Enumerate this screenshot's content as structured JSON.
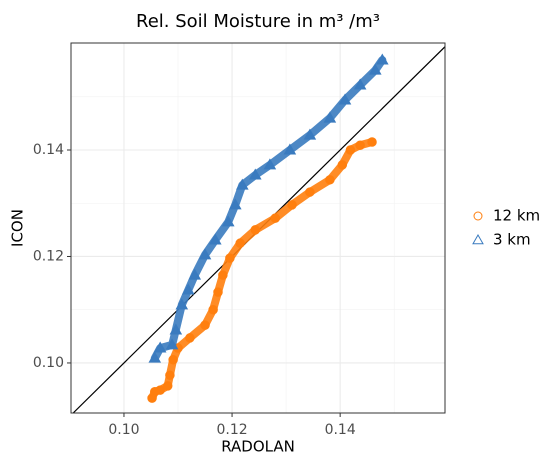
{
  "chart_data": {
    "type": "scatter",
    "title": "Rel. Soil Moisture in m³ /m³",
    "x_label": "RADOLAN",
    "y_label": "ICON",
    "xlim": [
      0.0902,
      0.1594
    ],
    "ylim": [
      0.0906,
      0.1601
    ],
    "xticks": [
      {
        "value": 0.1,
        "label": "0.10"
      },
      {
        "value": 0.12,
        "label": "0.12"
      },
      {
        "value": 0.14,
        "label": "0.14"
      }
    ],
    "yticks": [
      {
        "value": 0.1,
        "label": "0.10"
      },
      {
        "value": 0.12,
        "label": "0.12"
      },
      {
        "value": 0.14,
        "label": "0.14"
      }
    ],
    "grid": true,
    "legend": "right",
    "series": [
      {
        "name": "12 km",
        "color": "#ff7f0e",
        "marker": "circle",
        "x": [
          0.1052,
          0.1057,
          0.1067,
          0.1081,
          0.1085,
          0.1091,
          0.11,
          0.1122,
          0.115,
          0.1165,
          0.1174,
          0.1183,
          0.1196,
          0.1215,
          0.1243,
          0.128,
          0.1311,
          0.1344,
          0.1381,
          0.1404,
          0.1419,
          0.1437,
          0.1459
        ],
        "values": [
          0.0934,
          0.0946,
          0.0949,
          0.0957,
          0.0977,
          0.1006,
          0.1028,
          0.1047,
          0.1071,
          0.11,
          0.1133,
          0.1165,
          0.1197,
          0.1225,
          0.125,
          0.1272,
          0.1297,
          0.1321,
          0.1344,
          0.1372,
          0.14,
          0.1409,
          0.1415
        ]
      },
      {
        "name": "3 km",
        "color": "#3a7bbf",
        "marker": "triangle",
        "x": [
          0.1057,
          0.1067,
          0.1089,
          0.1096,
          0.1107,
          0.1119,
          0.1131,
          0.115,
          0.1169,
          0.1193,
          0.1206,
          0.1219,
          0.1243,
          0.127,
          0.1307,
          0.1344,
          0.1381,
          0.1409,
          0.1437,
          0.1465,
          0.1478
        ],
        "values": [
          0.1009,
          0.1028,
          0.1034,
          0.1062,
          0.1109,
          0.1137,
          0.1165,
          0.1203,
          0.1231,
          0.1265,
          0.1297,
          0.1334,
          0.1353,
          0.1372,
          0.14,
          0.1428,
          0.146,
          0.1494,
          0.1522,
          0.155,
          0.1569
        ]
      }
    ]
  }
}
